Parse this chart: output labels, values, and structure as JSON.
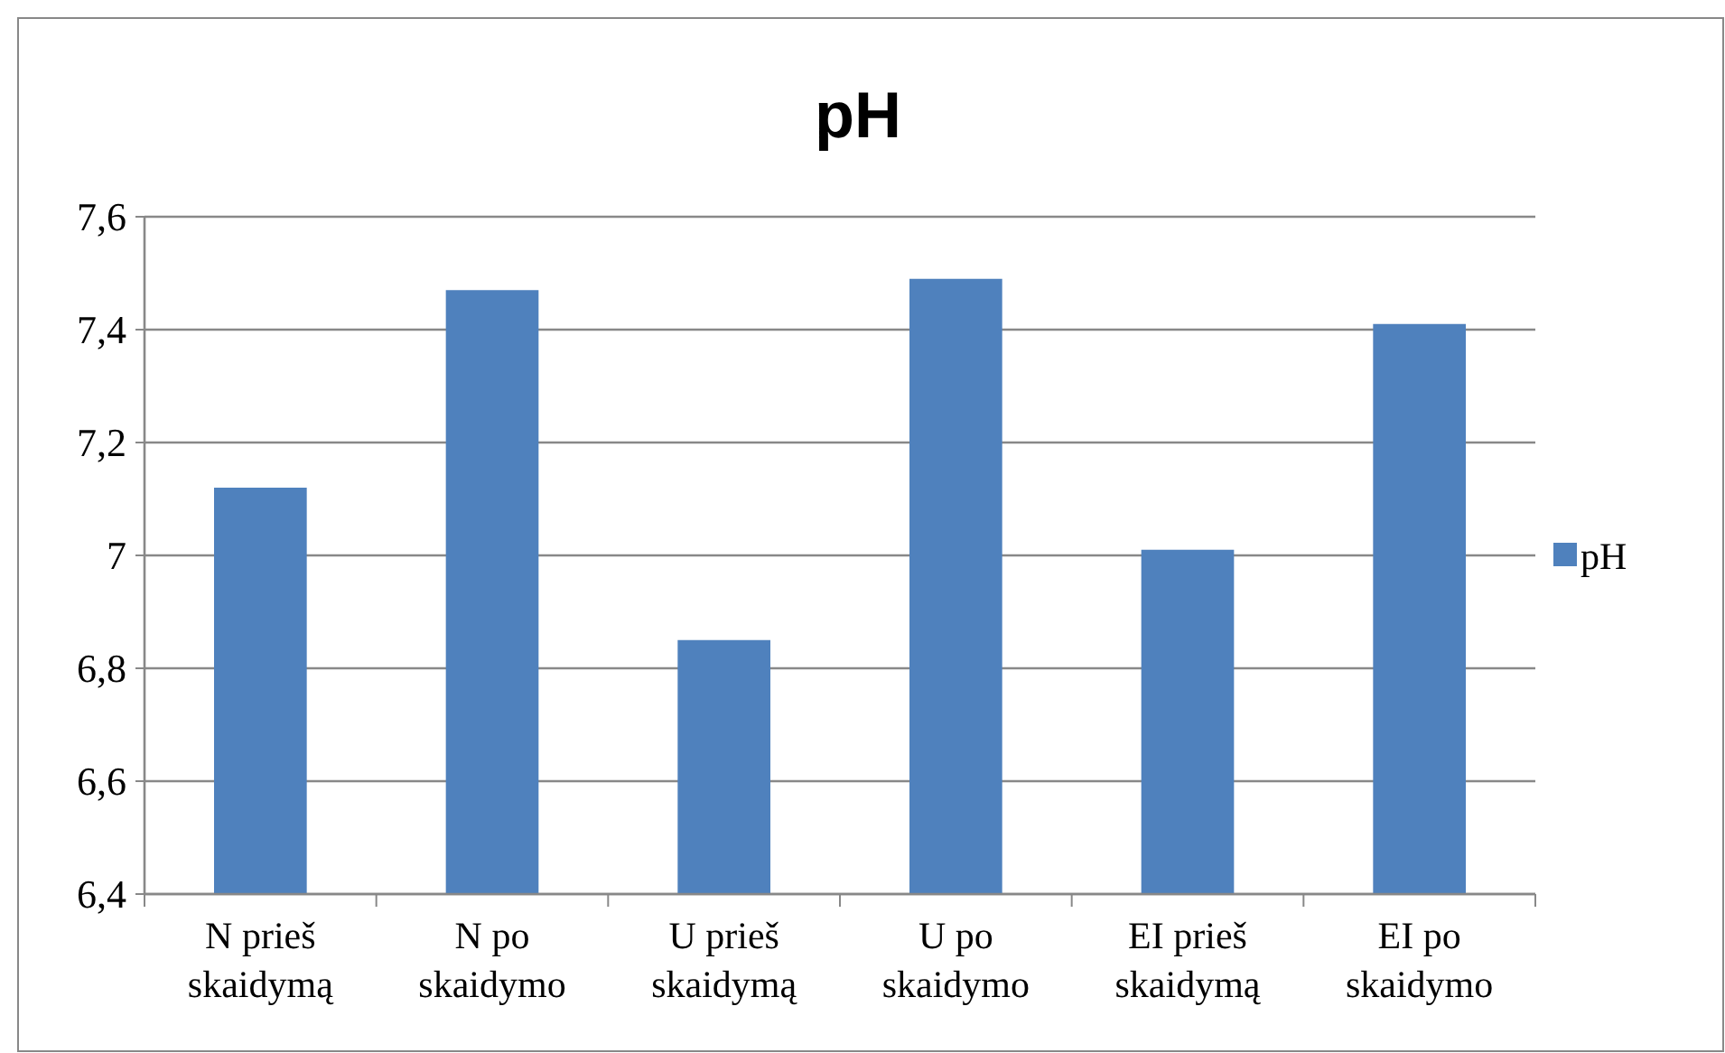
{
  "chart_data": {
    "type": "bar",
    "title": "pH",
    "categories": [
      "N prieš skaidymą",
      "N po skaidymo",
      "U prieš skaidymą",
      "U po skaidymo",
      "EI prieš skaidymą",
      "EI po skaidymo"
    ],
    "series": [
      {
        "name": "pH",
        "color": "#4f81bd",
        "values": [
          7.12,
          7.47,
          6.85,
          7.49,
          7.01,
          7.41
        ]
      }
    ],
    "ylim": [
      6.4,
      7.6
    ],
    "yticks": [
      {
        "value": 6.4,
        "label": "6,4"
      },
      {
        "value": 6.6,
        "label": "6,6"
      },
      {
        "value": 6.8,
        "label": "6,8"
      },
      {
        "value": 7,
        "label": "7"
      },
      {
        "value": 7.2,
        "label": "7,2"
      },
      {
        "value": 7.4,
        "label": "7,4"
      },
      {
        "value": 7.6,
        "label": "7,6"
      }
    ],
    "grid": "y",
    "legend": "right"
  }
}
